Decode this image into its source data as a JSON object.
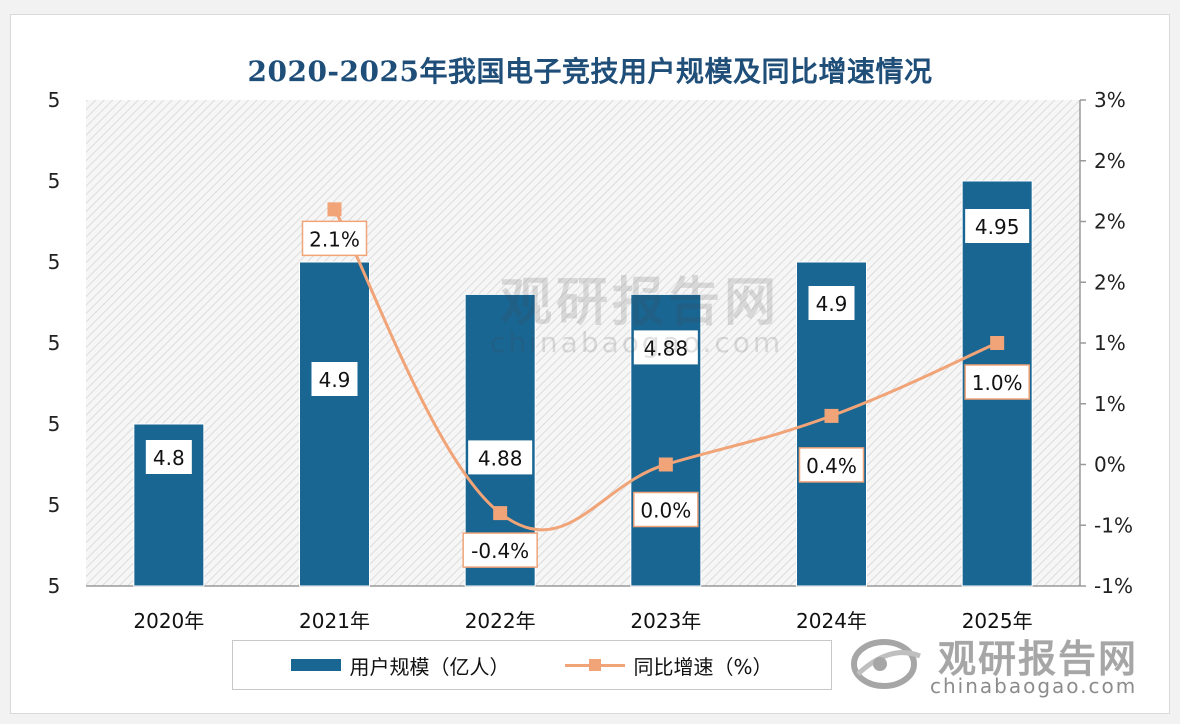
{
  "chart_data": {
    "type": "bar",
    "title": "2020-2025年我国电子竞技用户规模及同比增速情况",
    "categories": [
      "2020年",
      "2021年",
      "2022年",
      "2023年",
      "2024年",
      "2025年"
    ],
    "series": [
      {
        "name": "用户规模（亿人）",
        "kind": "bar",
        "axis": "left",
        "values": [
          4.8,
          4.9,
          4.88,
          4.88,
          4.9,
          4.95
        ],
        "labels": [
          "4.8",
          "4.9",
          "4.88",
          "4.88",
          "4.9",
          "4.95"
        ]
      },
      {
        "name": "同比增速（%）",
        "kind": "line",
        "axis": "right",
        "values": [
          null,
          2.1,
          -0.4,
          0.0,
          0.4,
          1.0
        ],
        "labels": [
          null,
          "2.1%",
          "-0.4%",
          "0.0%",
          "0.4%",
          "1.0%"
        ]
      }
    ],
    "left_axis": {
      "ylim": [
        4.7,
        5.0
      ],
      "tick_values": [
        4.7,
        4.75,
        4.8,
        4.85,
        4.9,
        4.95,
        5.0
      ],
      "tick_labels": [
        "5",
        "5",
        "5",
        "5",
        "5",
        "5",
        "5"
      ]
    },
    "right_axis": {
      "ylim": [
        -1.0,
        3.0
      ],
      "tick_values": [
        -1.0,
        -0.5,
        0.0,
        0.5,
        1.0,
        1.5,
        2.0,
        2.5,
        3.0
      ],
      "tick_labels": [
        "-1%",
        "-1%",
        "0%",
        "1%",
        "1%",
        "2%",
        "2%",
        "2%",
        "3%"
      ]
    },
    "legend": {
      "position": "bottom"
    },
    "colors": {
      "bar": "#1a6693",
      "line": "#f0a478",
      "title": "#1f4e79"
    }
  },
  "watermark": {
    "center_cn": "观研报告网",
    "center_en": "chinabaogao.com",
    "corner_cn": "观研报告网",
    "corner_en": "chinabaogao.com"
  }
}
